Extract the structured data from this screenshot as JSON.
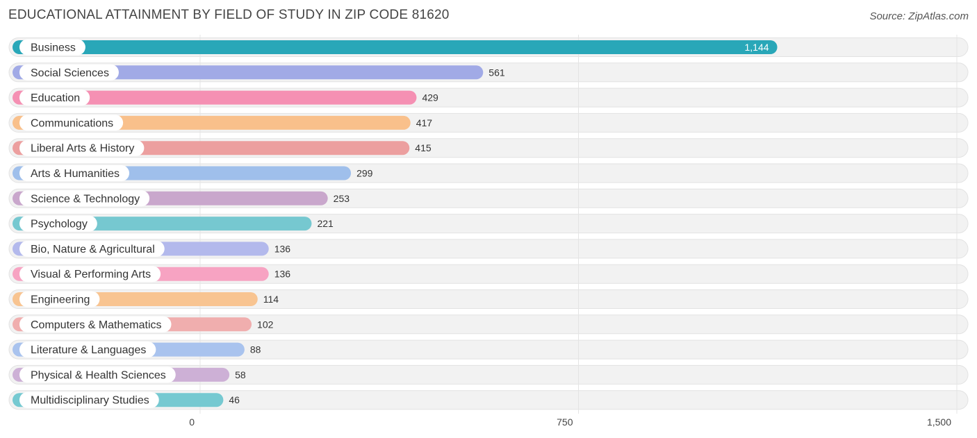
{
  "title": "EDUCATIONAL ATTAINMENT BY FIELD OF STUDY IN ZIP CODE 81620",
  "source": "Source: ZipAtlas.com",
  "chart_data": {
    "type": "bar",
    "orientation": "horizontal",
    "title": "EDUCATIONAL ATTAINMENT BY FIELD OF STUDY IN ZIP CODE 81620",
    "xlim": [
      0,
      1500
    ],
    "x_ticks": [
      0,
      750,
      1500
    ],
    "x_tick_labels": [
      "0",
      "750",
      "1,500"
    ],
    "grid": true,
    "categories": [
      "Business",
      "Social Sciences",
      "Education",
      "Communications",
      "Liberal Arts & History",
      "Arts & Humanities",
      "Science & Technology",
      "Psychology",
      "Bio, Nature & Agricultural",
      "Visual & Performing Arts",
      "Engineering",
      "Computers & Mathematics",
      "Literature & Languages",
      "Physical & Health Sciences",
      "Multidisciplinary Studies"
    ],
    "values": [
      1144,
      561,
      429,
      417,
      415,
      299,
      253,
      221,
      136,
      136,
      114,
      102,
      88,
      58,
      46
    ],
    "value_labels": [
      "1,144",
      "561",
      "429",
      "417",
      "415",
      "299",
      "253",
      "221",
      "136",
      "136",
      "114",
      "102",
      "88",
      "58",
      "46"
    ],
    "colors": [
      "#29a7b8",
      "#a1aae6",
      "#f590b3",
      "#f9c08b",
      "#ec9f9f",
      "#9fbfeb",
      "#c9a7cc",
      "#76c8d0",
      "#b3b9ec",
      "#f7a3c2",
      "#f8c491",
      "#f0aeae",
      "#a9c3ee",
      "#cdb0d6",
      "#76c9d1"
    ]
  }
}
